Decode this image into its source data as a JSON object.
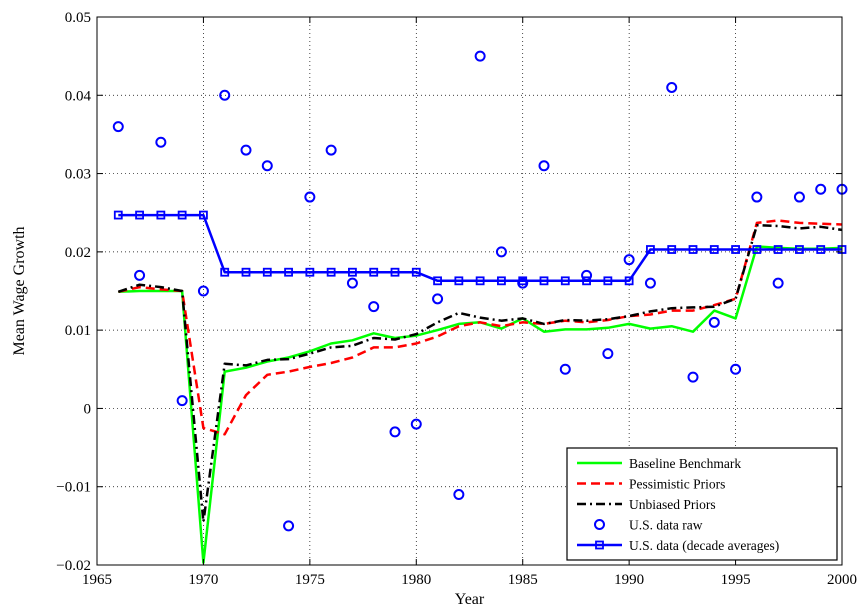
{
  "chart_data": {
    "type": "line",
    "xlabel": "Year",
    "ylabel": "Mean Wage Growth",
    "xlim": [
      1965,
      2000
    ],
    "ylim": [
      -0.02,
      0.05
    ],
    "xticks": [
      1965,
      1970,
      1975,
      1980,
      1985,
      1990,
      1995,
      2000
    ],
    "yticks": [
      -0.02,
      -0.01,
      0,
      0.01,
      0.02,
      0.03,
      0.04,
      0.05
    ],
    "xtick_labels": [
      "1965",
      "1970",
      "1975",
      "1980",
      "1985",
      "1990",
      "1995",
      "2000"
    ],
    "ytick_labels": [
      "−0.02",
      "−0.01",
      "0",
      "0.01",
      "0.02",
      "0.03",
      "0.04",
      "0.05"
    ],
    "grid": true,
    "legend_position": "bottom-right",
    "series": [
      {
        "name": "Baseline Benchmark",
        "color": "#00ff00",
        "style": "solid",
        "x": [
          1966,
          1967,
          1968,
          1969,
          1970,
          1971,
          1972,
          1973,
          1974,
          1975,
          1976,
          1977,
          1978,
          1979,
          1980,
          1981,
          1982,
          1983,
          1984,
          1985,
          1986,
          1987,
          1988,
          1989,
          1990,
          1991,
          1992,
          1993,
          1994,
          1995,
          1996,
          1997,
          1998,
          1999,
          2000
        ],
        "y": [
          0.0149,
          0.015,
          0.015,
          0.015,
          -0.0197,
          0.0047,
          0.0052,
          0.006,
          0.0065,
          0.0073,
          0.0083,
          0.0087,
          0.0096,
          0.009,
          0.0093,
          0.01,
          0.0108,
          0.011,
          0.0102,
          0.0115,
          0.0098,
          0.0101,
          0.0101,
          0.0103,
          0.0108,
          0.0102,
          0.0105,
          0.0098,
          0.0125,
          0.0115,
          0.0207,
          0.0205,
          0.0204,
          0.0204,
          0.0205
        ]
      },
      {
        "name": "Pessimistic Priors",
        "color": "#ff0000",
        "style": "dashed",
        "x": [
          1966,
          1967,
          1968,
          1969,
          1970,
          1971,
          1972,
          1973,
          1974,
          1975,
          1976,
          1977,
          1978,
          1979,
          1980,
          1981,
          1982,
          1983,
          1984,
          1985,
          1986,
          1987,
          1988,
          1989,
          1990,
          1991,
          1992,
          1993,
          1994,
          1995,
          1996,
          1997,
          1998,
          1999,
          2000
        ],
        "y": [
          0.0149,
          0.0155,
          0.0152,
          0.015,
          -0.0025,
          -0.0033,
          0.0017,
          0.0043,
          0.0047,
          0.0053,
          0.0058,
          0.0065,
          0.0078,
          0.0078,
          0.0083,
          0.0092,
          0.0105,
          0.011,
          0.0105,
          0.011,
          0.0108,
          0.0112,
          0.011,
          0.0113,
          0.0118,
          0.012,
          0.0125,
          0.0125,
          0.0132,
          0.014,
          0.0237,
          0.024,
          0.0237,
          0.0236,
          0.0235
        ]
      },
      {
        "name": "Unbiased Priors",
        "color": "#000000",
        "style": "dashdot",
        "x": [
          1966,
          1967,
          1968,
          1969,
          1970,
          1971,
          1972,
          1973,
          1974,
          1975,
          1976,
          1977,
          1978,
          1979,
          1980,
          1981,
          1982,
          1983,
          1984,
          1985,
          1986,
          1987,
          1988,
          1989,
          1990,
          1991,
          1992,
          1993,
          1994,
          1995,
          1996,
          1997,
          1998,
          1999,
          2000
        ],
        "y": [
          0.0149,
          0.0158,
          0.0155,
          0.015,
          -0.0145,
          0.0057,
          0.0055,
          0.0062,
          0.0063,
          0.007,
          0.0078,
          0.008,
          0.009,
          0.0088,
          0.0095,
          0.011,
          0.0122,
          0.0116,
          0.0112,
          0.0115,
          0.0108,
          0.0113,
          0.0112,
          0.0114,
          0.0118,
          0.0124,
          0.0128,
          0.0129,
          0.013,
          0.014,
          0.0234,
          0.0233,
          0.023,
          0.0232,
          0.0228
        ]
      },
      {
        "name": "U.S. data raw",
        "color": "#0000ff",
        "style": "markers-circle",
        "x": [
          1966,
          1967,
          1968,
          1969,
          1970,
          1971,
          1972,
          1973,
          1974,
          1975,
          1976,
          1977,
          1978,
          1979,
          1980,
          1981,
          1982,
          1983,
          1984,
          1985,
          1986,
          1987,
          1988,
          1989,
          1990,
          1991,
          1992,
          1993,
          1994,
          1995,
          1996,
          1997,
          1998,
          1999,
          2000
        ],
        "y": [
          0.036,
          0.017,
          0.034,
          0.001,
          0.015,
          0.04,
          0.033,
          0.031,
          -0.015,
          0.027,
          0.033,
          0.016,
          0.013,
          -0.003,
          -0.002,
          0.014,
          -0.011,
          0.045,
          0.02,
          0.016,
          0.031,
          0.005,
          0.017,
          0.007,
          0.019,
          0.016,
          0.041,
          0.004,
          0.011,
          0.005,
          0.027,
          0.016,
          0.027,
          0.028,
          0.028
        ]
      },
      {
        "name": "U.S. data (decade averages)",
        "color": "#0000ff",
        "style": "solid-square",
        "x": [
          1966,
          1967,
          1968,
          1969,
          1970,
          1971,
          1972,
          1973,
          1974,
          1975,
          1976,
          1977,
          1978,
          1979,
          1980,
          1981,
          1982,
          1983,
          1984,
          1985,
          1986,
          1987,
          1988,
          1989,
          1990,
          1991,
          1992,
          1993,
          1994,
          1995,
          1996,
          1997,
          1998,
          1999,
          2000
        ],
        "y": [
          0.0247,
          0.0247,
          0.0247,
          0.0247,
          0.0247,
          0.0174,
          0.0174,
          0.0174,
          0.0174,
          0.0174,
          0.0174,
          0.0174,
          0.0174,
          0.0174,
          0.0174,
          0.0163,
          0.0163,
          0.0163,
          0.0163,
          0.0163,
          0.0163,
          0.0163,
          0.0163,
          0.0163,
          0.0163,
          0.0203,
          0.0203,
          0.0203,
          0.0203,
          0.0203,
          0.0203,
          0.0203,
          0.0203,
          0.0203,
          0.0203
        ]
      }
    ]
  }
}
